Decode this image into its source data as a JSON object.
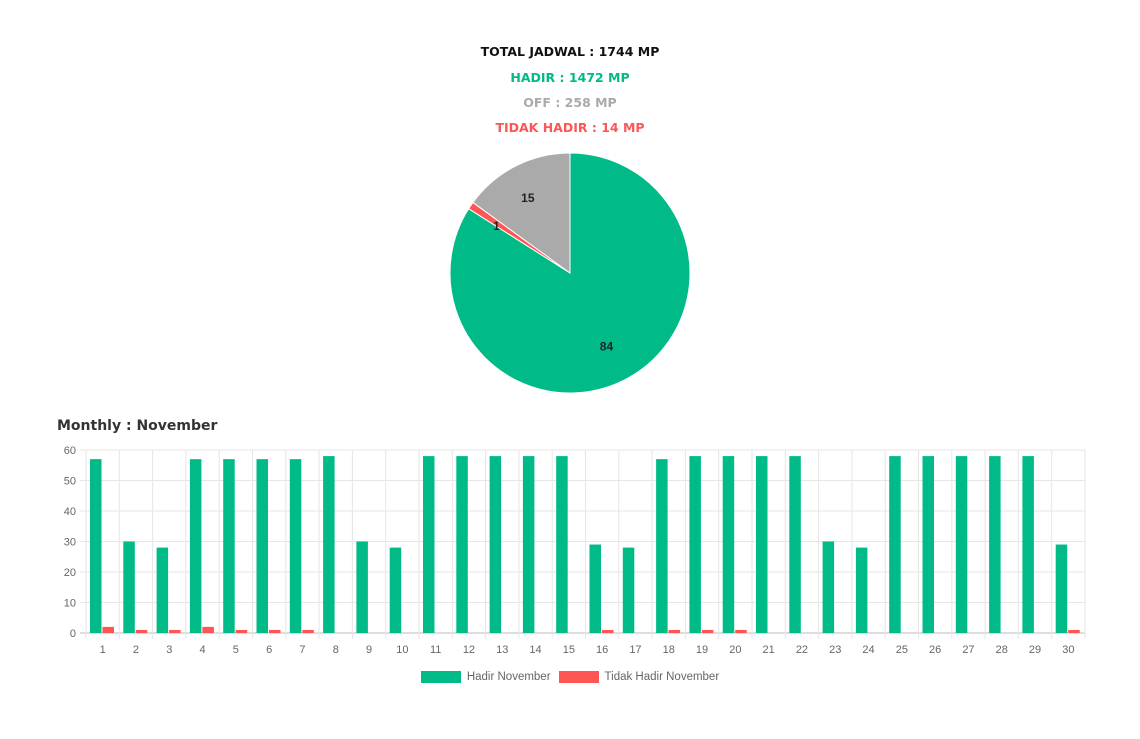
{
  "summary": {
    "total": "TOTAL JADWAL : 1744 MP",
    "hadir": "HADIR : 1472 MP",
    "off": "OFF : 258 MP",
    "tidak_hadir": "TIDAK HADIR : 14 MP"
  },
  "colors": {
    "total": "#111111",
    "hadir": "#00bb88",
    "off": "#aaaaaa",
    "tidak_hadir": "#ff5555"
  },
  "monthly_title": "Monthly : November",
  "chart_data": [
    {
      "type": "pie",
      "slices": [
        {
          "label": "84",
          "value": 84,
          "color": "#00bb88"
        },
        {
          "label": "1",
          "value": 1,
          "color": "#ff5555"
        },
        {
          "label": "15",
          "value": 15,
          "color": "#aaaaaa"
        }
      ]
    },
    {
      "type": "bar",
      "categories": [
        "1",
        "2",
        "3",
        "4",
        "5",
        "6",
        "7",
        "8",
        "9",
        "10",
        "11",
        "12",
        "13",
        "14",
        "15",
        "16",
        "17",
        "18",
        "19",
        "20",
        "21",
        "22",
        "23",
        "24",
        "25",
        "26",
        "27",
        "28",
        "29",
        "30"
      ],
      "series": [
        {
          "name": "Hadir November",
          "color": "#00bb88",
          "values": [
            57,
            30,
            28,
            57,
            57,
            57,
            57,
            58,
            30,
            28,
            58,
            58,
            58,
            58,
            58,
            29,
            28,
            57,
            58,
            58,
            58,
            58,
            30,
            28,
            58,
            58,
            58,
            58,
            58,
            29
          ]
        },
        {
          "name": "Tidak Hadir November",
          "color": "#ff5555",
          "values": [
            2,
            1,
            1,
            2,
            1,
            1,
            1,
            0,
            0,
            0,
            0,
            0,
            0,
            0,
            0,
            1,
            0,
            1,
            1,
            1,
            0,
            0,
            0,
            0,
            0,
            0,
            0,
            0,
            0,
            1
          ]
        }
      ],
      "ylim": [
        0,
        60
      ],
      "yticks": [
        0,
        10,
        20,
        30,
        40,
        50,
        60
      ],
      "grid": true,
      "legend": "bottom-center"
    }
  ]
}
